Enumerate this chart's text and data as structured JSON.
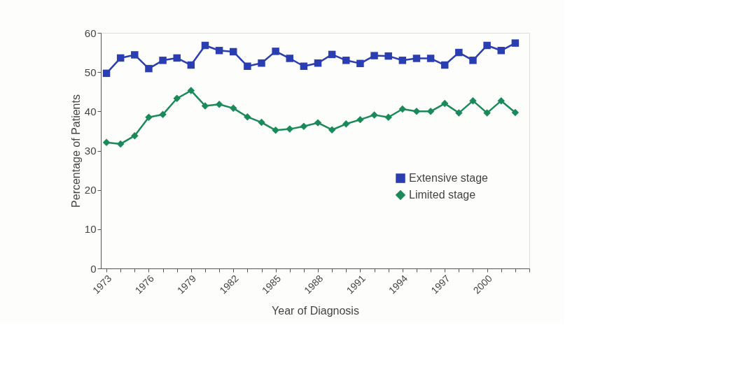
{
  "chart_data": {
    "type": "line",
    "xlabel": "Year of Diagnosis",
    "ylabel": "Percentage of Patients",
    "x": [
      1973,
      1974,
      1975,
      1976,
      1977,
      1978,
      1979,
      1980,
      1981,
      1982,
      1983,
      1984,
      1985,
      1986,
      1987,
      1988,
      1989,
      1990,
      1991,
      1992,
      1993,
      1994,
      1995,
      1996,
      1997,
      1998,
      1999,
      2000,
      2001,
      2002
    ],
    "series": [
      {
        "name": "Extensive stage",
        "color": "#2a3eb1",
        "marker": "square",
        "values": [
          49.7,
          53.6,
          54.4,
          50.9,
          53.0,
          53.6,
          51.8,
          56.8,
          55.5,
          55.2,
          51.5,
          52.3,
          55.3,
          53.5,
          51.5,
          52.3,
          54.5,
          53.0,
          52.2,
          54.2,
          54.1,
          53.0,
          53.5,
          53.5,
          51.8,
          55.0,
          53.0,
          56.8,
          55.5,
          57.4
        ]
      },
      {
        "name": "Limited stage",
        "color": "#1a8a5a",
        "marker": "diamond",
        "values": [
          32.1,
          31.7,
          33.8,
          38.5,
          39.2,
          43.3,
          45.3,
          41.4,
          41.8,
          40.8,
          38.6,
          37.2,
          35.2,
          35.5,
          36.2,
          37.1,
          35.3,
          36.8,
          37.9,
          39.1,
          38.5,
          40.6,
          40.0,
          40.0,
          42.0,
          39.6,
          42.7,
          39.6,
          42.7,
          39.7
        ]
      }
    ],
    "xlim": [
      1972.6,
      2003.0
    ],
    "xticks": [
      1973,
      {
        "value": 1974,
        "label": null
      },
      {
        "value": 1975,
        "label": null
      },
      1976,
      {
        "value": 1977,
        "label": null
      },
      {
        "value": 1978,
        "label": null
      },
      1979,
      {
        "value": 1980,
        "label": null
      },
      {
        "value": 1981,
        "label": null
      },
      1982,
      {
        "value": 1983,
        "label": null
      },
      {
        "value": 1984,
        "label": null
      },
      1985,
      {
        "value": 1986,
        "label": null
      },
      {
        "value": 1987,
        "label": null
      },
      1988,
      {
        "value": 1989,
        "label": null
      },
      {
        "value": 1990,
        "label": null
      },
      1991,
      {
        "value": 1992,
        "label": null
      },
      {
        "value": 1993,
        "label": null
      },
      1994,
      {
        "value": 1995,
        "label": null
      },
      {
        "value": 1996,
        "label": null
      },
      1997,
      {
        "value": 1998,
        "label": null
      },
      {
        "value": 1999,
        "label": null
      },
      2000,
      {
        "value": 2001,
        "label": null
      },
      {
        "value": 2002,
        "label": null
      },
      {
        "value": 2003,
        "label": null
      }
    ],
    "ylim": [
      0,
      60
    ],
    "yticks": [
      0,
      10,
      20,
      30,
      40,
      50,
      60
    ],
    "grid": false,
    "legend": "right",
    "line_style": "solid"
  }
}
